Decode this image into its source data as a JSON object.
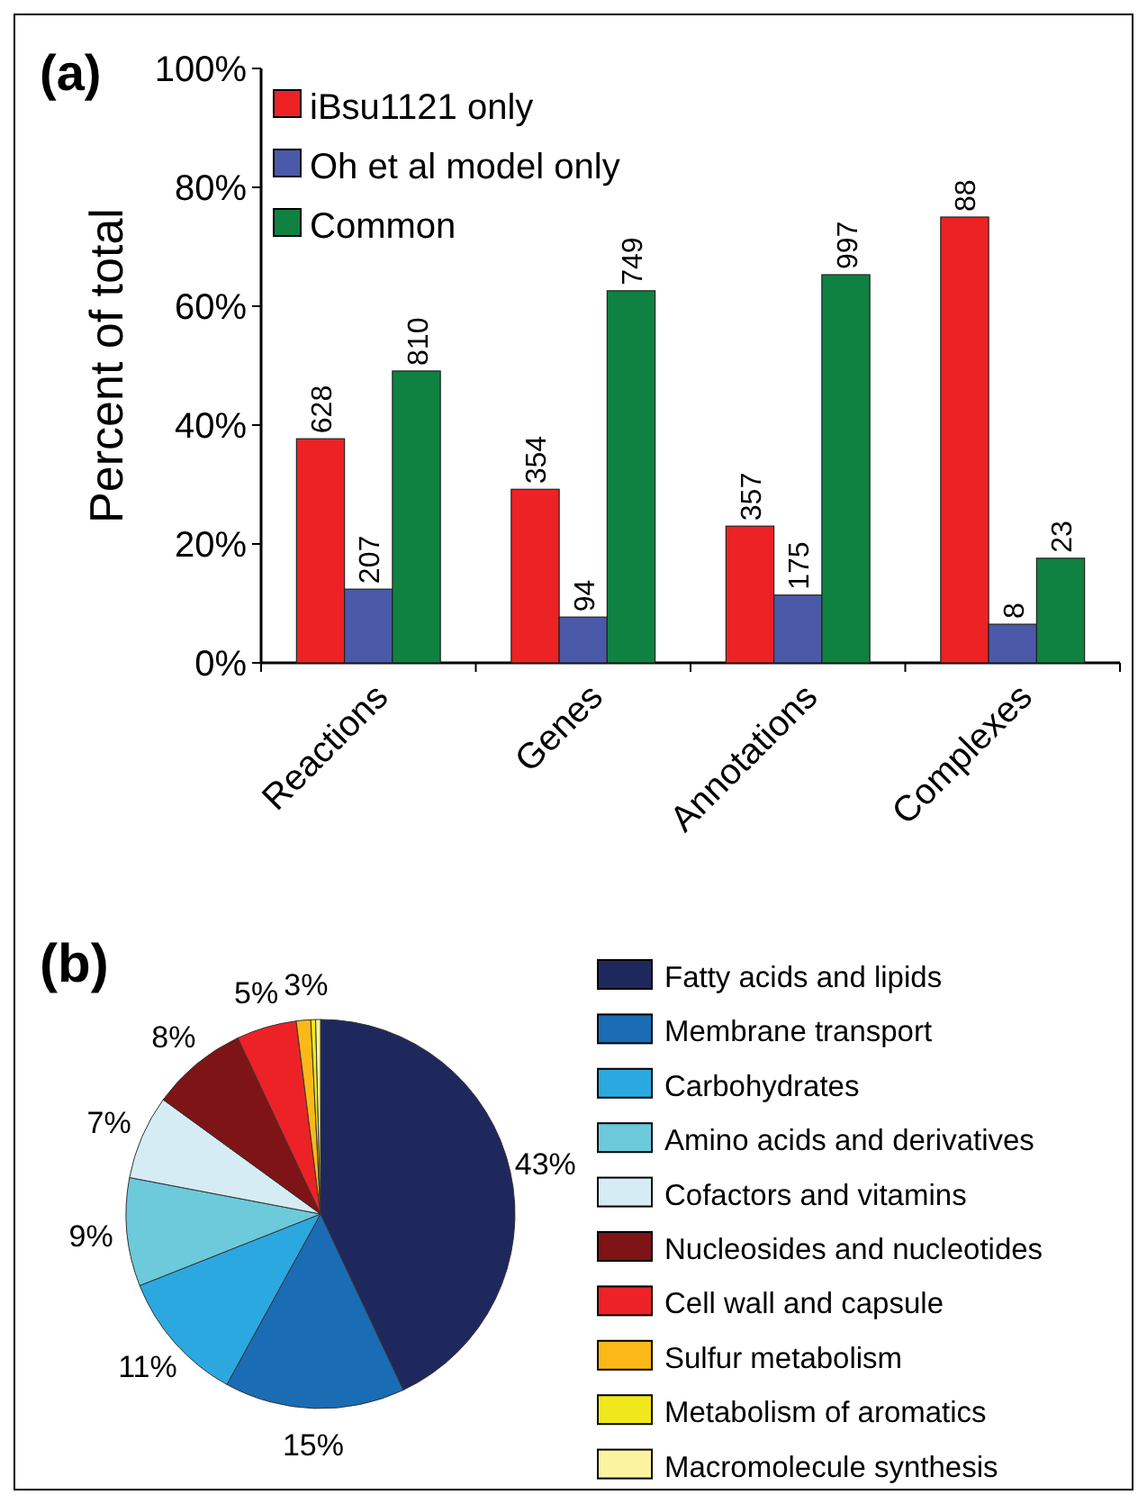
{
  "chart_data": [
    {
      "type": "bar",
      "title": "(a)",
      "ylabel": "Percent of total",
      "categories": [
        "Reactions",
        "Genes",
        "Annotations",
        "Complexes"
      ],
      "ylim": [
        0,
        100
      ],
      "yticks": [
        {
          "value": 0,
          "label": "0%"
        },
        {
          "value": 20,
          "label": "20%"
        },
        {
          "value": 40,
          "label": "40%"
        },
        {
          "value": 60,
          "label": "60%"
        },
        {
          "value": 80,
          "label": "80%"
        },
        {
          "value": 100,
          "label": "100%"
        }
      ],
      "legend": "top left",
      "series": [
        {
          "name": "iBsu1121 only",
          "color": "#ed2224",
          "values": [
            37.7,
            29.2,
            23,
            75
          ]
        },
        {
          "name": "Oh et al model only",
          "color": "#4a5aa8",
          "values": [
            12.4,
            7.7,
            11.4,
            6.5
          ]
        },
        {
          "name": "Common",
          "color": "#0f8140",
          "values": [
            49.1,
            62.6,
            65.3,
            17.6
          ]
        }
      ],
      "annotations": [
        "628",
        "354",
        "357",
        "88",
        "207",
        "94",
        "175",
        "8",
        "810",
        "749",
        "997",
        "23"
      ]
    },
    {
      "type": "pie",
      "title": "(b)",
      "legend": "right",
      "categories": [
        "Fatty acids and lipids",
        "Membrane transport",
        "Carbohydrates",
        "Amino acids and derivatives",
        "Cofactors and vitamins",
        "Nucleosides and nucleotides",
        "Cell wall and capsule",
        "Sulfur metabolism",
        "Metabolism of aromatics",
        "Macromolecule synthesis"
      ],
      "values": [
        43,
        15,
        11,
        9,
        7,
        8,
        5,
        1.2,
        0.4,
        0.4
      ],
      "value_labels": [
        "43%",
        "15%",
        "11%",
        "9%",
        "7%",
        "8%",
        "5%",
        null,
        null,
        null
      ],
      "annotations": [
        "3%"
      ],
      "colors": [
        "#1f285c",
        "#1a6cb5",
        "#2ca8e0",
        "#6ccadb",
        "#d6ecf4",
        "#7e1416",
        "#ec2227",
        "#fbb817",
        "#f0e81c",
        "#faf3a0"
      ]
    }
  ]
}
